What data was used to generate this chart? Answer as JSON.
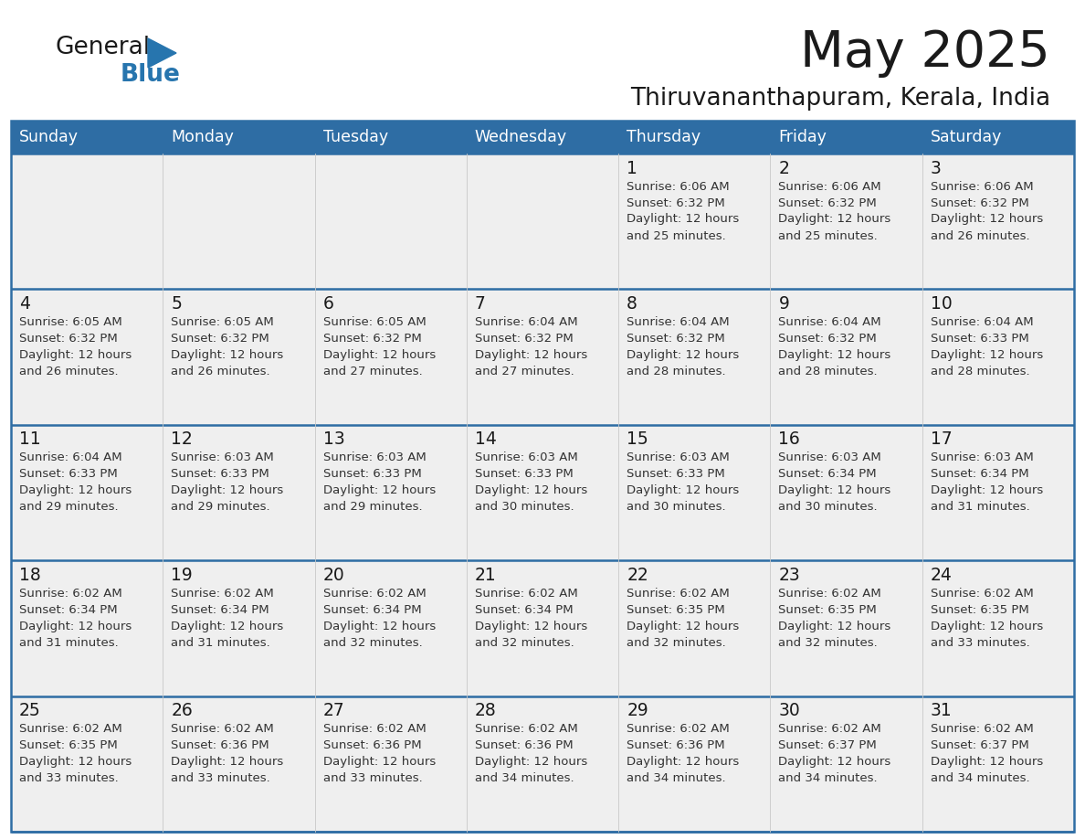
{
  "title": "May 2025",
  "subtitle": "Thiruvananthapuram, Kerala, India",
  "days_of_week": [
    "Sunday",
    "Monday",
    "Tuesday",
    "Wednesday",
    "Thursday",
    "Friday",
    "Saturday"
  ],
  "header_bg": "#2E6DA4",
  "header_text": "#FFFFFF",
  "row_bg": "#EFEFEF",
  "border_color": "#2E6DA4",
  "day_num_color": "#1a1a1a",
  "info_text_color": "#333333",
  "logo_general_color": "#1a1a1a",
  "logo_blue_color": "#2775AE",
  "calendar": [
    [
      null,
      null,
      null,
      null,
      {
        "day": 1,
        "sunrise": "6:06 AM",
        "sunset": "6:32 PM",
        "daylight": "12 hours and 25 minutes."
      },
      {
        "day": 2,
        "sunrise": "6:06 AM",
        "sunset": "6:32 PM",
        "daylight": "12 hours and 25 minutes."
      },
      {
        "day": 3,
        "sunrise": "6:06 AM",
        "sunset": "6:32 PM",
        "daylight": "12 hours and 26 minutes."
      }
    ],
    [
      {
        "day": 4,
        "sunrise": "6:05 AM",
        "sunset": "6:32 PM",
        "daylight": "12 hours and 26 minutes."
      },
      {
        "day": 5,
        "sunrise": "6:05 AM",
        "sunset": "6:32 PM",
        "daylight": "12 hours and 26 minutes."
      },
      {
        "day": 6,
        "sunrise": "6:05 AM",
        "sunset": "6:32 PM",
        "daylight": "12 hours and 27 minutes."
      },
      {
        "day": 7,
        "sunrise": "6:04 AM",
        "sunset": "6:32 PM",
        "daylight": "12 hours and 27 minutes."
      },
      {
        "day": 8,
        "sunrise": "6:04 AM",
        "sunset": "6:32 PM",
        "daylight": "12 hours and 28 minutes."
      },
      {
        "day": 9,
        "sunrise": "6:04 AM",
        "sunset": "6:32 PM",
        "daylight": "12 hours and 28 minutes."
      },
      {
        "day": 10,
        "sunrise": "6:04 AM",
        "sunset": "6:33 PM",
        "daylight": "12 hours and 28 minutes."
      }
    ],
    [
      {
        "day": 11,
        "sunrise": "6:04 AM",
        "sunset": "6:33 PM",
        "daylight": "12 hours and 29 minutes."
      },
      {
        "day": 12,
        "sunrise": "6:03 AM",
        "sunset": "6:33 PM",
        "daylight": "12 hours and 29 minutes."
      },
      {
        "day": 13,
        "sunrise": "6:03 AM",
        "sunset": "6:33 PM",
        "daylight": "12 hours and 29 minutes."
      },
      {
        "day": 14,
        "sunrise": "6:03 AM",
        "sunset": "6:33 PM",
        "daylight": "12 hours and 30 minutes."
      },
      {
        "day": 15,
        "sunrise": "6:03 AM",
        "sunset": "6:33 PM",
        "daylight": "12 hours and 30 minutes."
      },
      {
        "day": 16,
        "sunrise": "6:03 AM",
        "sunset": "6:34 PM",
        "daylight": "12 hours and 30 minutes."
      },
      {
        "day": 17,
        "sunrise": "6:03 AM",
        "sunset": "6:34 PM",
        "daylight": "12 hours and 31 minutes."
      }
    ],
    [
      {
        "day": 18,
        "sunrise": "6:02 AM",
        "sunset": "6:34 PM",
        "daylight": "12 hours and 31 minutes."
      },
      {
        "day": 19,
        "sunrise": "6:02 AM",
        "sunset": "6:34 PM",
        "daylight": "12 hours and 31 minutes."
      },
      {
        "day": 20,
        "sunrise": "6:02 AM",
        "sunset": "6:34 PM",
        "daylight": "12 hours and 32 minutes."
      },
      {
        "day": 21,
        "sunrise": "6:02 AM",
        "sunset": "6:34 PM",
        "daylight": "12 hours and 32 minutes."
      },
      {
        "day": 22,
        "sunrise": "6:02 AM",
        "sunset": "6:35 PM",
        "daylight": "12 hours and 32 minutes."
      },
      {
        "day": 23,
        "sunrise": "6:02 AM",
        "sunset": "6:35 PM",
        "daylight": "12 hours and 32 minutes."
      },
      {
        "day": 24,
        "sunrise": "6:02 AM",
        "sunset": "6:35 PM",
        "daylight": "12 hours and 33 minutes."
      }
    ],
    [
      {
        "day": 25,
        "sunrise": "6:02 AM",
        "sunset": "6:35 PM",
        "daylight": "12 hours and 33 minutes."
      },
      {
        "day": 26,
        "sunrise": "6:02 AM",
        "sunset": "6:36 PM",
        "daylight": "12 hours and 33 minutes."
      },
      {
        "day": 27,
        "sunrise": "6:02 AM",
        "sunset": "6:36 PM",
        "daylight": "12 hours and 33 minutes."
      },
      {
        "day": 28,
        "sunrise": "6:02 AM",
        "sunset": "6:36 PM",
        "daylight": "12 hours and 34 minutes."
      },
      {
        "day": 29,
        "sunrise": "6:02 AM",
        "sunset": "6:36 PM",
        "daylight": "12 hours and 34 minutes."
      },
      {
        "day": 30,
        "sunrise": "6:02 AM",
        "sunset": "6:37 PM",
        "daylight": "12 hours and 34 minutes."
      },
      {
        "day": 31,
        "sunrise": "6:02 AM",
        "sunset": "6:37 PM",
        "daylight": "12 hours and 34 minutes."
      }
    ]
  ]
}
